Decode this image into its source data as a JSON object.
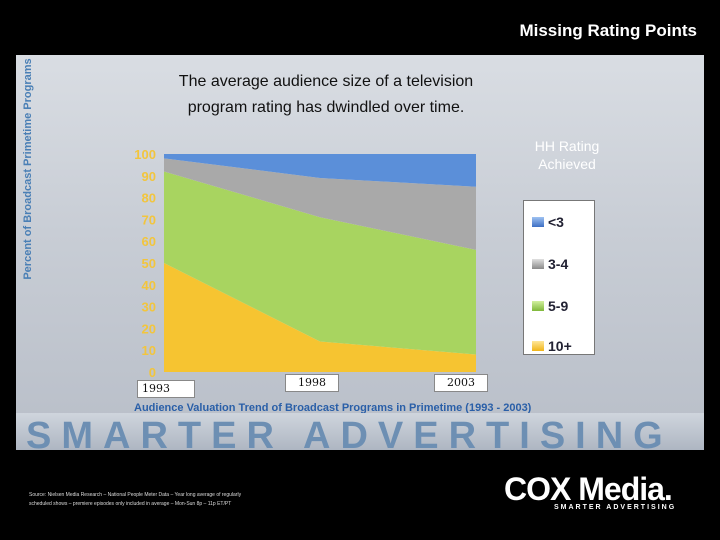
{
  "header": {
    "title": "Missing Rating Points"
  },
  "headline": "The average audience size of a television program rating has dwindled over time.",
  "headline_lines": [
    "The average audience size of a television",
    "program rating has dwindled over time."
  ],
  "chart_data": {
    "type": "area",
    "stacked": true,
    "title": "",
    "ylabel": "Percent of Broadcast Primetime Programs",
    "xlabel": "",
    "caption": "Audience Valuation Trend of Broadcast Programs in Primetime (1993 - 2003)",
    "x": [
      "1993",
      "1998",
      "2003"
    ],
    "ylim": [
      0,
      100
    ],
    "yticks": [
      0,
      10,
      20,
      30,
      40,
      50,
      60,
      70,
      80,
      90,
      100
    ],
    "legend_title": "HH Rating Achieved",
    "legend_title_lines": [
      "HH Rating",
      "Achieved"
    ],
    "legend_position": "right",
    "series": [
      {
        "name": "10+",
        "values": [
          50,
          14,
          8
        ],
        "color": "#f6c431"
      },
      {
        "name": "5-9",
        "values": [
          42,
          57,
          48
        ],
        "color": "#a8d460"
      },
      {
        "name": "3-4",
        "values": [
          6,
          18,
          29
        ],
        "color": "#a9a9a9"
      },
      {
        "name": "<3",
        "values": [
          2,
          11,
          15
        ],
        "color": "#5b8fd9"
      }
    ]
  },
  "band_text": "SMARTER ADVERTISING",
  "source_lines": [
    "Source: Nielsen Media Research – National People Meter Data – Year long average of regularly",
    "scheduled shows – premiere episodes only included in average – Mon-Sun 8p – 11p ET/PT"
  ],
  "logo": {
    "main": "COX Media.",
    "sub": "SMARTER ADVERTISING"
  }
}
